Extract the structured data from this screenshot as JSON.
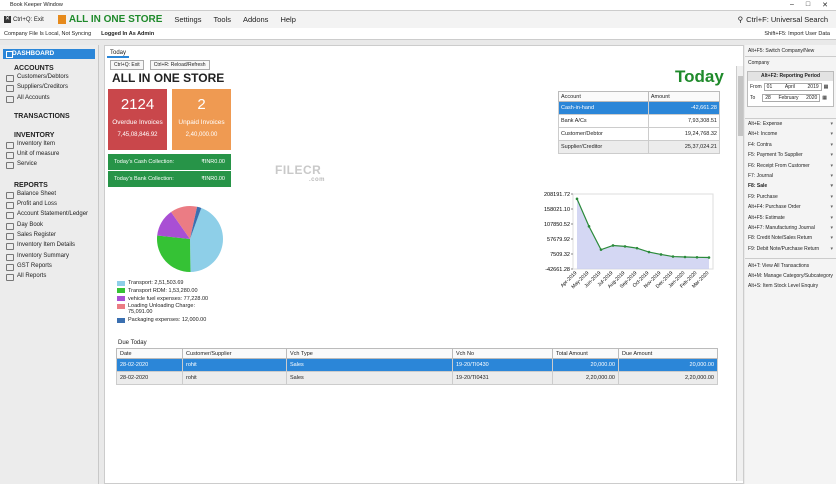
{
  "window": {
    "title": "Book Keeper Window"
  },
  "menu": {
    "exit": "Ctrl+Q: Exit",
    "store_name": "ALL IN ONE STORE",
    "items": [
      "Settings",
      "Tools",
      "Addons",
      "Help"
    ],
    "search": "Ctrl+F: Universal Search"
  },
  "status": {
    "sync": "Company File Is Local, Not Syncing",
    "user": "Logged In As Admin",
    "import": "Shift+F5: Import User Data"
  },
  "sidebar": {
    "dashboard": "DASHBOARD",
    "sections": [
      {
        "title": "ACCOUNTS",
        "items": [
          "Customers/Debtors",
          "Suppliers/Creditors",
          "All Accounts"
        ]
      },
      {
        "title": "TRANSACTIONS",
        "items": []
      },
      {
        "title": "INVENTORY",
        "items": [
          "Inventory Item",
          "Unit of measure",
          "Service"
        ]
      },
      {
        "title": "REPORTS",
        "items": [
          "Balance Sheet",
          "Profit and Loss",
          "Account Statement/Ledger",
          "Day Book",
          "Sales Register",
          "Inventory Item Details",
          "Inventory Summary",
          "GST Reports",
          "All Reports"
        ]
      }
    ]
  },
  "main": {
    "tab": "Today",
    "toolbar": {
      "exit": "Ctrl+Q: Exit",
      "reload": "Ctrl+R: Reload/Refresh"
    },
    "title": "ALL IN ONE STORE",
    "today": "Today",
    "cards": {
      "overdue": {
        "count": "2124",
        "label": "Overdue Invoices",
        "amount": "7,45,08,846.92",
        "color": "#c9474b"
      },
      "unpaid": {
        "count": "2",
        "label": "Unpaid Invoices",
        "amount": "2,40,000.00",
        "color": "#ef9a52"
      }
    },
    "cash": {
      "label": "Today's Cash Collection:",
      "value": "₹INR0.00"
    },
    "bank": {
      "label": "Today's Bank Collection:",
      "value": "₹INR0.00"
    },
    "watermark": {
      "brand": "FILECR",
      "domain": ".com"
    },
    "accounts": {
      "headers": [
        "Account",
        "Amount"
      ],
      "rows": [
        {
          "name": "Cash-in-hand",
          "amount": "-42,661.28"
        },
        {
          "name": "Bank A/Cs",
          "amount": "7,93,308.51"
        },
        {
          "name": "Customer/Debtor",
          "amount": "19,24,768.32"
        },
        {
          "name": "Supplier/Creditor",
          "amount": "25,37,024.21"
        }
      ]
    },
    "due": {
      "label": "Due Today",
      "headers": [
        "Date",
        "Customer/Supplier",
        "Vch Type",
        "Vch No",
        "Total Amount",
        "Due Amount"
      ],
      "rows": [
        {
          "date": "28-02-2020",
          "party": "rohit",
          "type": "Sales",
          "no": "19-20/TI0430",
          "total": "20,000.00",
          "due": "20,000.00"
        },
        {
          "date": "28-02-2020",
          "party": "rohit",
          "type": "Sales",
          "no": "19-20/TI0431",
          "total": "2,20,000.00",
          "due": "2,20,000.00"
        }
      ]
    }
  },
  "chart_data": [
    {
      "type": "pie",
      "labels": [
        "Transport: 2,51,503.69",
        "Transport RDM: 1,53,280.00",
        "vehicle fuel expenses: 77,228.00",
        "Loading Unloading Charge: 75,091.00",
        "Packaging expenses: 12,000.00"
      ],
      "values": [
        251503.69,
        153280,
        77228,
        75091,
        12000
      ],
      "colors": [
        "#8ecfe8",
        "#35c235",
        "#a94fd4",
        "#eb7c84",
        "#3a6fb0"
      ],
      "legend": "bottom"
    },
    {
      "type": "area",
      "categories": [
        "Apr-2019",
        "May-2019",
        "Jun-2019",
        "Jul-2019",
        "Aug-2019",
        "Sep-2019",
        "Oct-2019",
        "Nov-2019",
        "Dec-2019",
        "Jan-2020",
        "Feb-2020",
        "Mar-2020"
      ],
      "values": [
        192000,
        100000,
        22000,
        36000,
        33000,
        27000,
        14000,
        6000,
        -1000,
        -2500,
        -3500,
        -4200
      ],
      "yticks": [
        "208191.72",
        "158021.10",
        "107850.52",
        "57679.92",
        "7509.32",
        "-42661.28"
      ],
      "ylim": [
        -42661.28,
        208191.72
      ],
      "color": "#2a8a3a"
    }
  ],
  "right": {
    "switch": "Alt+F5: Switch Company/New Company",
    "period": {
      "title": "Alt+F2: Reporting Period",
      "from_label": "From",
      "from_day": "01",
      "from_month": "April",
      "from_year": "2019",
      "to_label": "To",
      "to_day": "28",
      "to_month": "February",
      "to_year": "2020"
    },
    "shortcuts": [
      "Alt+E: Expense",
      "Alt+I: Income",
      "F4: Contra",
      "F5: Payment To Supplier",
      "F6: Receipt From Customer",
      "F7: Journal",
      "F8: Sale",
      "F9: Purchase",
      "Alt+F4: Purchase Order",
      "Alt+F5: Estimate",
      "Alt+F7: Manufacturing Journal",
      "F8: Credit Note/Sales Return",
      "F9: Debit Note/Purchase Return"
    ],
    "extra": [
      "Alt+T: View All Transactions",
      "Alt+M: Manage Category/Subcategory",
      "Alt+S: Item Stock Level Enquiry"
    ]
  }
}
